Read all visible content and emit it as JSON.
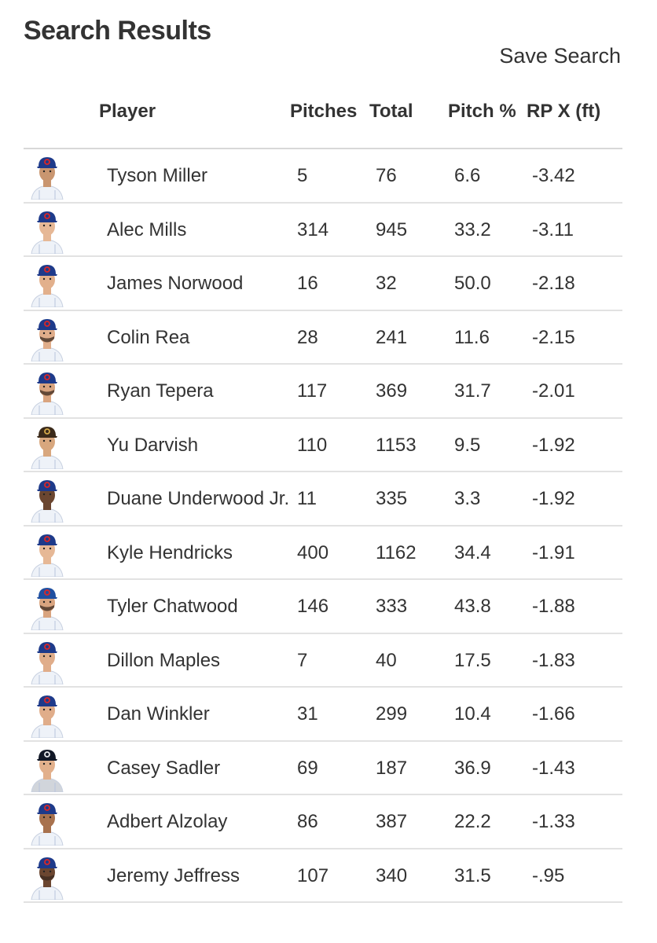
{
  "page": {
    "title": "Search Results",
    "save_search_label": "Save Search"
  },
  "table": {
    "columns": {
      "player": "Player",
      "pitches": "Pitches",
      "total": "Total",
      "pitch_pct": "Pitch %",
      "rp_x": "RP X (ft)"
    },
    "rows": [
      {
        "name": "Tyson Miller",
        "pitches": "5",
        "total": "76",
        "pitch_pct": "6.6",
        "rp_x": "-3.42",
        "cap": "#1e3a8a",
        "skin": "#c99670",
        "beard": false,
        "team": "cubs"
      },
      {
        "name": "Alec Mills",
        "pitches": "314",
        "total": "945",
        "pitch_pct": "33.2",
        "rp_x": "-3.11",
        "cap": "#1e3a8a",
        "skin": "#e6b896",
        "beard": false,
        "team": "cubs"
      },
      {
        "name": "James Norwood",
        "pitches": "16",
        "total": "32",
        "pitch_pct": "50.0",
        "rp_x": "-2.18",
        "cap": "#1e3a8a",
        "skin": "#e2b08c",
        "beard": false,
        "team": "cubs"
      },
      {
        "name": "Colin Rea",
        "pitches": "28",
        "total": "241",
        "pitch_pct": "11.6",
        "rp_x": "-2.15",
        "cap": "#1e3a8a",
        "skin": "#e0ad8a",
        "beard": true,
        "team": "cubs"
      },
      {
        "name": "Ryan Tepera",
        "pitches": "117",
        "total": "369",
        "pitch_pct": "31.7",
        "rp_x": "-2.01",
        "cap": "#1e3a8a",
        "skin": "#d9a47f",
        "beard": true,
        "team": "cubs"
      },
      {
        "name": "Yu Darvish",
        "pitches": "110",
        "total": "1153",
        "pitch_pct": "9.5",
        "rp_x": "-1.92",
        "cap": "#3b2a1a",
        "skin": "#d8a77e",
        "beard": false,
        "team": "padres"
      },
      {
        "name": "Duane Underwood Jr.",
        "pitches": "11",
        "total": "335",
        "pitch_pct": "3.3",
        "rp_x": "-1.92",
        "cap": "#1e3a8a",
        "skin": "#6b4630",
        "beard": false,
        "team": "cubs"
      },
      {
        "name": "Kyle Hendricks",
        "pitches": "400",
        "total": "1162",
        "pitch_pct": "34.4",
        "rp_x": "-1.91",
        "cap": "#1e3a8a",
        "skin": "#e6b896",
        "beard": false,
        "team": "cubs"
      },
      {
        "name": "Tyler Chatwood",
        "pitches": "146",
        "total": "333",
        "pitch_pct": "43.8",
        "rp_x": "-1.88",
        "cap": "#1f4fa0",
        "skin": "#d9a47f",
        "beard": true,
        "team": "bluejays"
      },
      {
        "name": "Dillon Maples",
        "pitches": "7",
        "total": "40",
        "pitch_pct": "17.5",
        "rp_x": "-1.83",
        "cap": "#1e3a8a",
        "skin": "#e0ad8a",
        "beard": false,
        "team": "cubs"
      },
      {
        "name": "Dan Winkler",
        "pitches": "31",
        "total": "299",
        "pitch_pct": "10.4",
        "rp_x": "-1.66",
        "cap": "#1e3a8a",
        "skin": "#e0ad8a",
        "beard": false,
        "team": "cubs"
      },
      {
        "name": "Casey Sadler",
        "pitches": "69",
        "total": "187",
        "pitch_pct": "36.9",
        "rp_x": "-1.43",
        "cap": "#111827",
        "skin": "#e2b08c",
        "beard": false,
        "team": "mariners"
      },
      {
        "name": "Adbert Alzolay",
        "pitches": "86",
        "total": "387",
        "pitch_pct": "22.2",
        "rp_x": "-1.33",
        "cap": "#1e3a8a",
        "skin": "#a8724e",
        "beard": false,
        "team": "cubs"
      },
      {
        "name": "Jeremy Jeffress",
        "pitches": "107",
        "total": "340",
        "pitch_pct": "31.5",
        "rp_x": "-.95",
        "cap": "#1e3a8a",
        "skin": "#6b4630",
        "beard": true,
        "team": "cubs"
      }
    ]
  }
}
